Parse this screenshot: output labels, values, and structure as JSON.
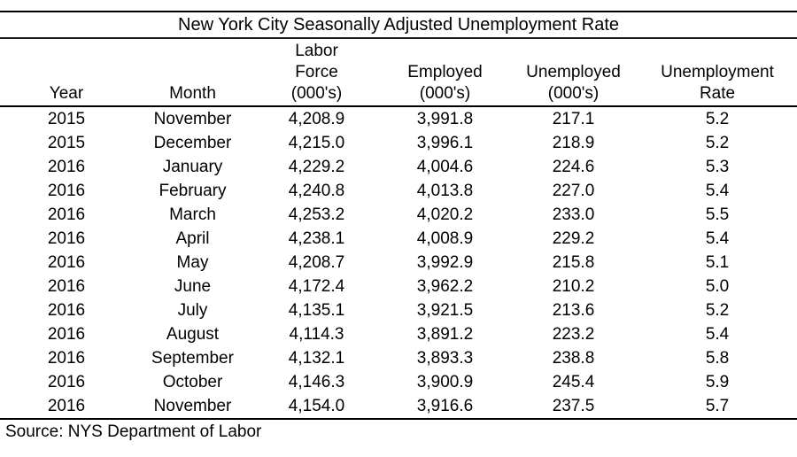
{
  "colors": {
    "background": "#ffffff",
    "text": "#000000",
    "rule": "#000000"
  },
  "chart_data": {
    "type": "table",
    "title": "New York City Seasonally Adjusted Unemployment Rate",
    "source": "Source: NYS Department of Labor",
    "columns": [
      {
        "id": "year",
        "header_lines": [
          "Year"
        ]
      },
      {
        "id": "month",
        "header_lines": [
          "Month"
        ]
      },
      {
        "id": "labor_force_000s",
        "header_lines": [
          "Labor",
          "Force",
          "(000's)"
        ]
      },
      {
        "id": "employed_000s",
        "header_lines": [
          "Employed",
          "(000's)"
        ]
      },
      {
        "id": "unemployed_000s",
        "header_lines": [
          "Unemployed",
          "(000's)"
        ]
      },
      {
        "id": "unemployment_rate",
        "header_lines": [
          "Unemployment",
          "Rate"
        ]
      }
    ],
    "rows": [
      [
        "2015",
        "November",
        "4,208.9",
        "3,991.8",
        "217.1",
        "5.2"
      ],
      [
        "2015",
        "December",
        "4,215.0",
        "3,996.1",
        "218.9",
        "5.2"
      ],
      [
        "2016",
        "January",
        "4,229.2",
        "4,004.6",
        "224.6",
        "5.3"
      ],
      [
        "2016",
        "February",
        "4,240.8",
        "4,013.8",
        "227.0",
        "5.4"
      ],
      [
        "2016",
        "March",
        "4,253.2",
        "4,020.2",
        "233.0",
        "5.5"
      ],
      [
        "2016",
        "April",
        "4,238.1",
        "4,008.9",
        "229.2",
        "5.4"
      ],
      [
        "2016",
        "May",
        "4,208.7",
        "3,992.9",
        "215.8",
        "5.1"
      ],
      [
        "2016",
        "June",
        "4,172.4",
        "3,962.2",
        "210.2",
        "5.0"
      ],
      [
        "2016",
        "July",
        "4,135.1",
        "3,921.5",
        "213.6",
        "5.2"
      ],
      [
        "2016",
        "August",
        "4,114.3",
        "3,891.2",
        "223.2",
        "5.4"
      ],
      [
        "2016",
        "September",
        "4,132.1",
        "3,893.3",
        "238.8",
        "5.8"
      ],
      [
        "2016",
        "October",
        "4,146.3",
        "3,900.9",
        "245.4",
        "5.9"
      ],
      [
        "2016",
        "November",
        "4,154.0",
        "3,916.6",
        "237.5",
        "5.7"
      ]
    ]
  }
}
